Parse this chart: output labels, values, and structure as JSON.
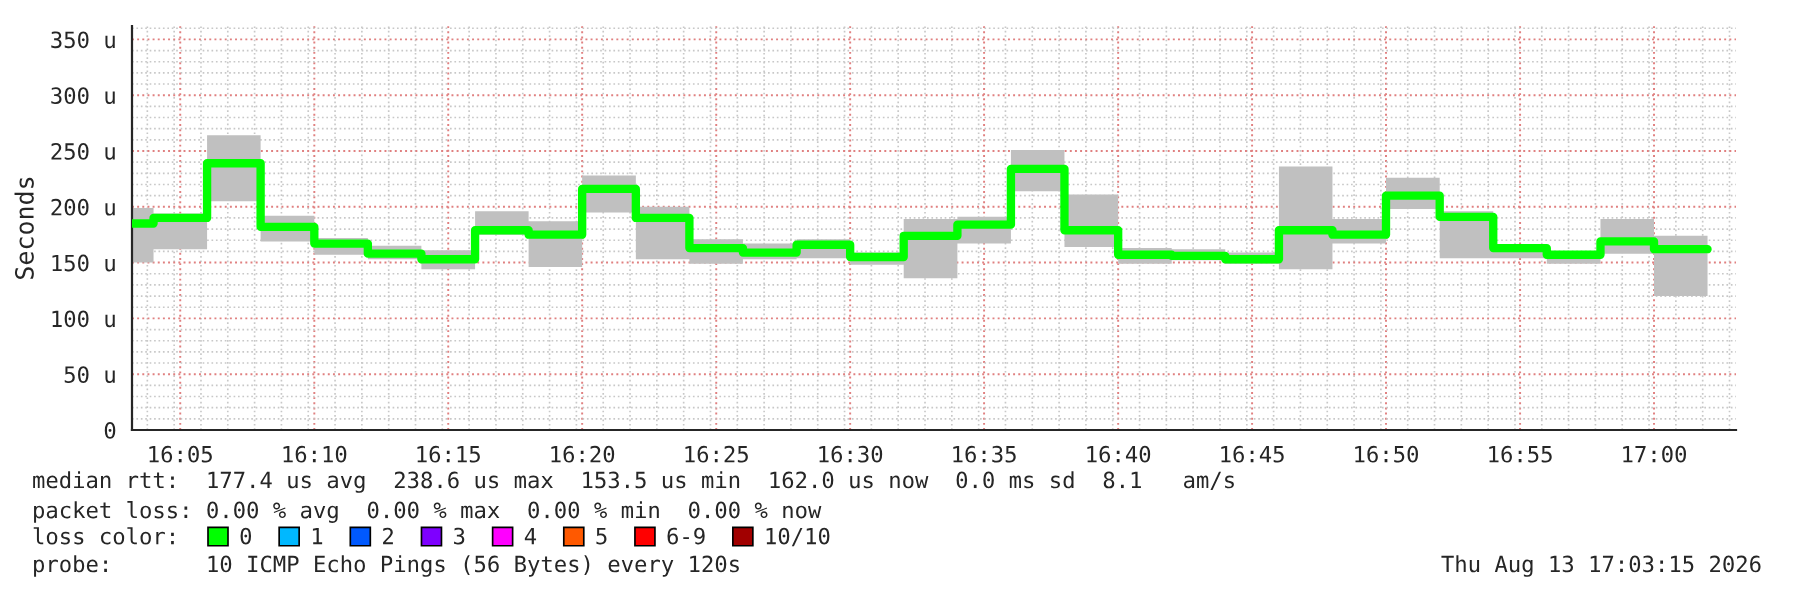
{
  "chart_data": {
    "type": "step",
    "ylabel": "Seconds",
    "x": [
      16.0533,
      16.0667,
      16.1,
      16.1333,
      16.1667,
      16.2,
      16.2333,
      16.2667,
      16.3,
      16.3333,
      16.3667,
      16.4,
      16.4333,
      16.4667,
      16.5,
      16.5333,
      16.5667,
      16.6,
      16.6333,
      16.6667,
      16.7,
      16.7333,
      16.7667,
      16.8,
      16.8333,
      16.8667,
      16.9,
      16.9333,
      16.9667,
      17.0,
      17.0333
    ],
    "series": [
      {
        "name": "0",
        "color": "#00ff00",
        "values": [
          185,
          190,
          239,
          182,
          167,
          158,
          153,
          179,
          175,
          216,
          190,
          163,
          159,
          166,
          155,
          174,
          184,
          234,
          179,
          157,
          156,
          153,
          179,
          175,
          210,
          191,
          163,
          157,
          169,
          162,
          162
        ],
        "lower": [
          150,
          162,
          205,
          169,
          157,
          153,
          144,
          175,
          146,
          195,
          153,
          149,
          153,
          154,
          148,
          136,
          167,
          214,
          164,
          149,
          152,
          149,
          144,
          167,
          198,
          154,
          154,
          149,
          158,
          120,
          120
        ],
        "upper": [
          199,
          194,
          264,
          192,
          172,
          165,
          161,
          196,
          187,
          228,
          200,
          171,
          167,
          171,
          159,
          189,
          191,
          251,
          211,
          163,
          162,
          159,
          236,
          189,
          226,
          196,
          165,
          160,
          189,
          174,
          174
        ]
      },
      {
        "name": "1",
        "color": "#00b8ff",
        "values": [
          null,
          null,
          null,
          null,
          null,
          null,
          null,
          null,
          null,
          null,
          null,
          null,
          null,
          null,
          null,
          null,
          null,
          null,
          null,
          null,
          null,
          null,
          null,
          null,
          null,
          null,
          null,
          null,
          null,
          null,
          null
        ]
      },
      {
        "name": "2",
        "color": "#0059ff",
        "values": [
          null,
          null,
          null,
          null,
          null,
          null,
          null,
          null,
          null,
          null,
          null,
          null,
          null,
          null,
          null,
          null,
          null,
          null,
          null,
          null,
          null,
          null,
          null,
          null,
          null,
          null,
          null,
          null,
          null,
          null,
          null
        ]
      },
      {
        "name": "3",
        "color": "#7e00ff",
        "values": [
          null,
          null,
          null,
          null,
          null,
          null,
          null,
          null,
          null,
          null,
          null,
          null,
          null,
          null,
          null,
          null,
          null,
          null,
          null,
          null,
          null,
          null,
          null,
          null,
          null,
          null,
          null,
          null,
          null,
          null,
          null
        ]
      },
      {
        "name": "4",
        "color": "#ff00ff",
        "values": [
          null,
          null,
          null,
          null,
          null,
          null,
          null,
          null,
          null,
          null,
          null,
          null,
          null,
          null,
          null,
          null,
          null,
          null,
          null,
          null,
          null,
          null,
          null,
          null,
          null,
          null,
          null,
          null,
          null,
          null,
          null
        ]
      },
      {
        "name": "5",
        "color": "#ff5900",
        "values": [
          null,
          null,
          null,
          null,
          null,
          null,
          null,
          null,
          null,
          null,
          null,
          null,
          null,
          null,
          null,
          null,
          null,
          null,
          null,
          null,
          null,
          null,
          null,
          null,
          null,
          null,
          null,
          null,
          null,
          null,
          null
        ]
      },
      {
        "name": "6-9",
        "color": "#ff0000",
        "values": [
          null,
          null,
          null,
          null,
          null,
          null,
          null,
          null,
          null,
          null,
          null,
          null,
          null,
          null,
          null,
          null,
          null,
          null,
          null,
          null,
          null,
          null,
          null,
          null,
          null,
          null,
          null,
          null,
          null,
          null,
          null
        ]
      },
      {
        "name": "10/10",
        "color": "#a10000",
        "values": [
          null,
          null,
          null,
          null,
          null,
          null,
          null,
          null,
          null,
          null,
          null,
          null,
          null,
          null,
          null,
          null,
          null,
          null,
          null,
          null,
          null,
          null,
          null,
          null,
          null,
          null,
          null,
          null,
          null,
          null,
          null
        ]
      }
    ],
    "xlim": [
      16.0533,
      17.051
    ],
    "xticks": [
      {
        "value": 16.0833,
        "label": "16:05"
      },
      {
        "value": 16.1667,
        "label": "16:10"
      },
      {
        "value": 16.25,
        "label": "16:15"
      },
      {
        "value": 16.3333,
        "label": "16:20"
      },
      {
        "value": 16.4167,
        "label": "16:25"
      },
      {
        "value": 16.5,
        "label": "16:30"
      },
      {
        "value": 16.5833,
        "label": "16:35"
      },
      {
        "value": 16.6667,
        "label": "16:40"
      },
      {
        "value": 16.75,
        "label": "16:45"
      },
      {
        "value": 16.8333,
        "label": "16:50"
      },
      {
        "value": 16.9167,
        "label": "16:55"
      },
      {
        "value": 17.0,
        "label": "17:00"
      }
    ],
    "ylim": [
      0,
      362
    ],
    "yticks": [
      0,
      {
        "value": 50,
        "label": "50 u"
      },
      {
        "value": 100,
        "label": "100 u"
      },
      {
        "value": 150,
        "label": "150 u"
      },
      {
        "value": 200,
        "label": "200 u"
      },
      {
        "value": 250,
        "label": "250 u"
      },
      {
        "value": 300,
        "label": "300 u"
      },
      {
        "value": 350,
        "label": "350 u"
      }
    ],
    "grid": true,
    "legend": "bottom",
    "legend_title": "loss color:",
    "annotations": [
      "median rtt:  177.4 us avg  238.6 us max  153.5 us min  162.0 us now  0.0 ms sd  8.1   am/s",
      "packet loss: 0.00 % avg  0.00 % max  0.00 % min  0.00 % now",
      "probe:       10 ICMP Echo Pings (56 Bytes) every 120s",
      "Thu Aug 13 17:03:15 2026"
    ]
  }
}
